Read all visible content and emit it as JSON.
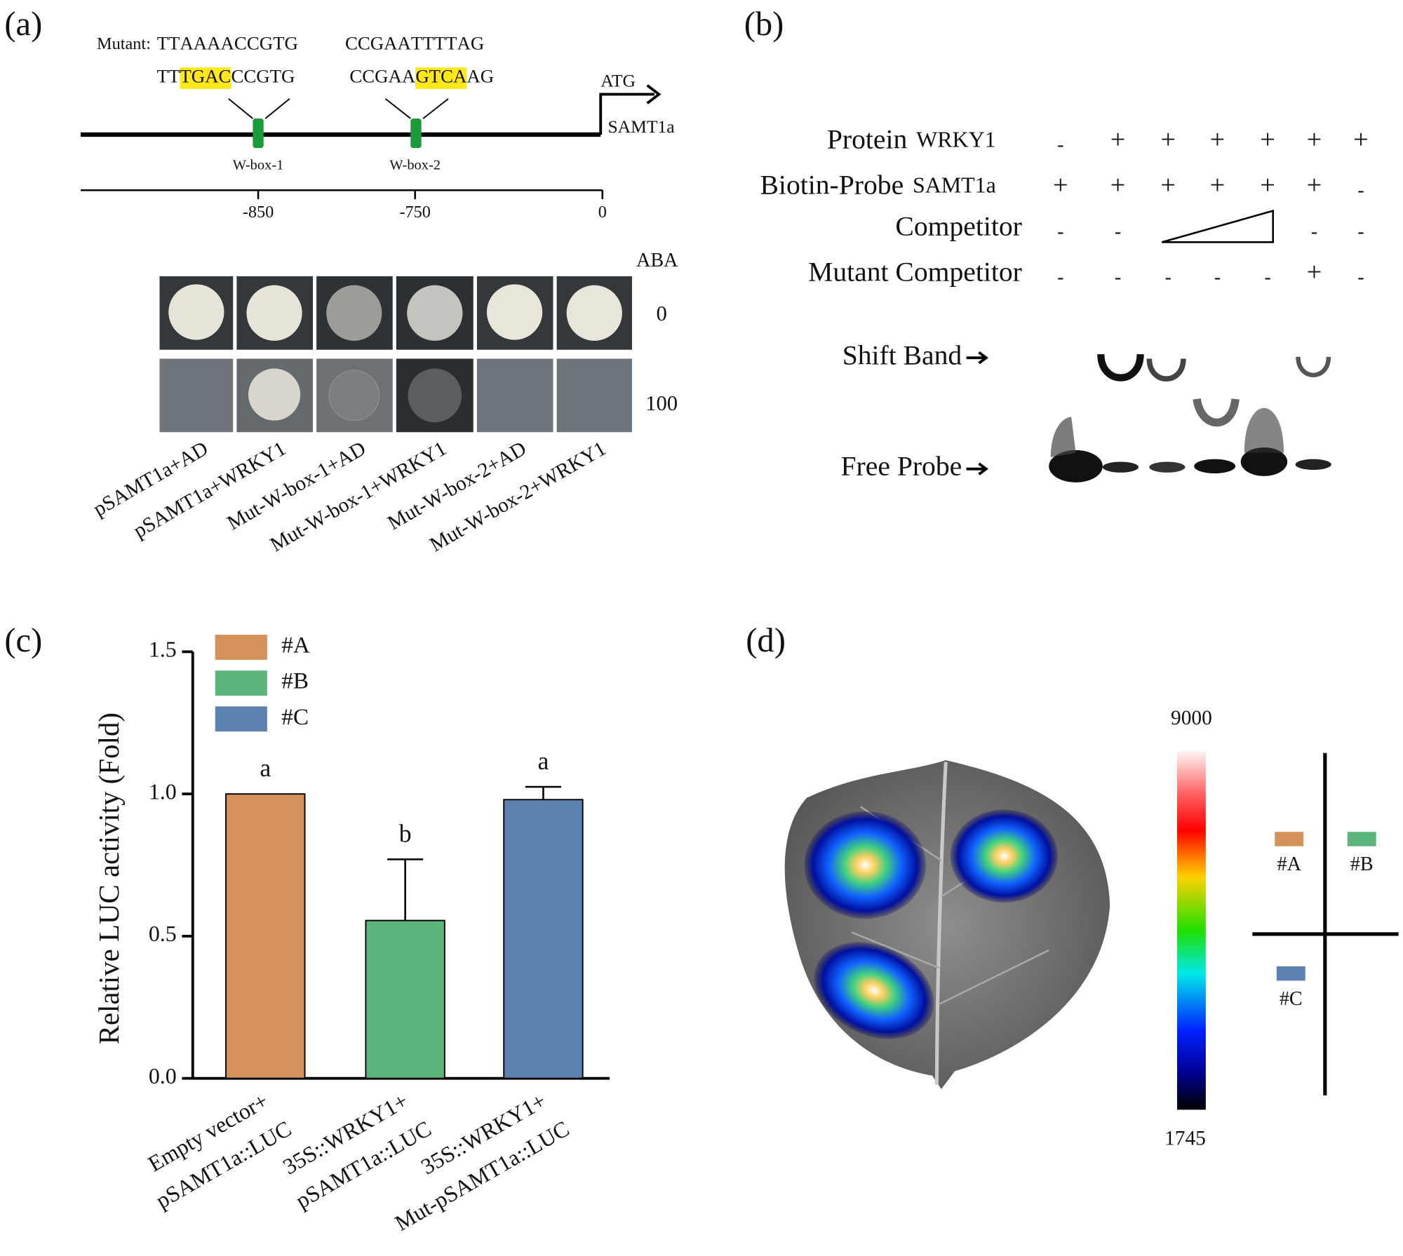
{
  "panel_a": {
    "label": "(a)",
    "mutant_label": "Mutant:",
    "mutant_sequences": [
      [
        {
          "text": "TT",
          "mutated": false
        },
        {
          "text": "AA",
          "mutated": true
        },
        {
          "text": "A",
          "mutated": false
        },
        {
          "text": "A",
          "mutated": true
        },
        {
          "text": "CCGTG",
          "mutated": false
        }
      ],
      [
        {
          "text": "CCGAA",
          "mutated": false
        },
        {
          "text": "T",
          "mutated": true
        },
        {
          "text": "T",
          "mutated": false
        },
        {
          "text": "TT",
          "mutated": true
        },
        {
          "text": "AG",
          "mutated": false
        }
      ]
    ],
    "wild_sequences": [
      [
        {
          "text": "TT",
          "highlight": false
        },
        {
          "text": "TGAC",
          "highlight": true
        },
        {
          "text": "CCGTG",
          "highlight": false
        }
      ],
      [
        {
          "text": "CCGAA",
          "highlight": false
        },
        {
          "text": "GTCA",
          "highlight": true
        },
        {
          "text": "AG",
          "highlight": false
        }
      ]
    ],
    "start_codon": "ATG",
    "gene": "SAMT1a",
    "boxes": [
      "W-box-1",
      "W-box-2"
    ],
    "scale_labels": [
      "-850",
      "-750",
      "0"
    ],
    "treatment_label": "ABA",
    "treatments": [
      "0",
      "100"
    ],
    "strains": [
      "pSAMT1a+AD",
      "pSAMT1a+WRKY1",
      "Mut-W-box-1+AD",
      "Mut-W-box-1+WRKY1",
      "Mut-W-box-2+AD",
      "Mut-W-box-2+WRKY1"
    ]
  },
  "panel_b": {
    "label": "(b)",
    "rows": [
      {
        "name": "Protein",
        "sub": "WRKY1",
        "signs": [
          "-",
          "+",
          "+",
          "+",
          "+",
          "+",
          "+"
        ]
      },
      {
        "name": "Biotin-Probe",
        "sub": "SAMT1a",
        "signs": [
          "+",
          "+",
          "+",
          "+",
          "+",
          "+",
          "-"
        ]
      },
      {
        "name": "Competitor",
        "signs": [
          "-",
          "-",
          null,
          null,
          null,
          "-",
          "-"
        ]
      },
      {
        "name": "Mutant Competitor",
        "signs": [
          "-",
          "-",
          "-",
          "-",
          "-",
          "+",
          "-"
        ]
      }
    ],
    "shift_band": "Shift Band",
    "free_probe": "Free Probe"
  },
  "chart_data": {
    "type": "bar",
    "label": "(c)",
    "ylabel": "Relative LUC activity (Fold)",
    "categories": [
      [
        "Empty vector+",
        "pSAMT1a::LUC"
      ],
      [
        "35S::WRKY1+",
        "pSAMT1a::LUC"
      ],
      [
        "35S::WRKY1+",
        "Mut-pSAMT1a::LUC"
      ]
    ],
    "values": [
      1.0,
      0.555,
      0.98
    ],
    "errors": [
      null,
      0.215,
      0.045
    ],
    "colors": [
      "#d4915a",
      "#5cb57b",
      "#5b82b0"
    ],
    "legend": [
      "#A",
      "#B",
      "#C"
    ],
    "annotations": [
      "a",
      "b",
      "a"
    ],
    "ylim": [
      0,
      1.5
    ],
    "yticks": [
      {
        "value": 0,
        "label": "0.0"
      },
      0.5,
      {
        "value": 1,
        "label": "1.0"
      },
      1.5
    ]
  },
  "panel_d": {
    "label": "(d)",
    "scale_max": "9000",
    "scale_min": "1745",
    "quadrants": [
      {
        "name": "#A",
        "color": "#d4915a"
      },
      {
        "name": "#B",
        "color": "#5cb57b"
      },
      {
        "name": "#C",
        "color": "#5b82b0"
      }
    ]
  }
}
